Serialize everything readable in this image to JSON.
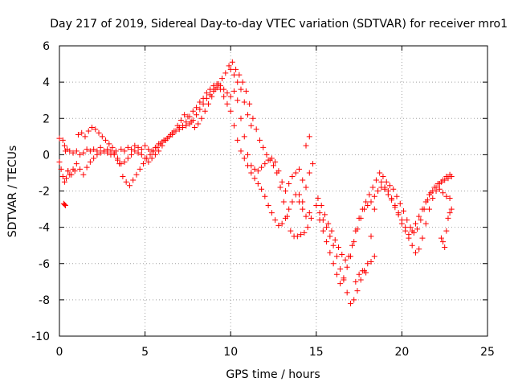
{
  "chart_data": {
    "type": "scatter",
    "title": "Day 217 of 2019, Sidereal Day-to-day VTEC variation (SDTVAR) for receiver mro1",
    "xlabel": "GPS time / hours",
    "ylabel": "SDTVAR / TECUs",
    "xlim": [
      0,
      25
    ],
    "ylim": [
      -10,
      6
    ],
    "x_ticks": [
      0,
      5,
      10,
      15,
      20,
      25
    ],
    "y_ticks": [
      -10,
      -8,
      -6,
      -4,
      -2,
      0,
      2,
      4,
      6
    ],
    "x_tick_labels": [
      "0",
      "5",
      "10",
      "15",
      "20",
      "25"
    ],
    "y_tick_labels": [
      "-10",
      "-8",
      "-6",
      "-4",
      "-2",
      "0",
      "2",
      "4",
      "6"
    ],
    "grid": true,
    "legend": "none",
    "marker": "plus",
    "color": "#ff0000",
    "series": [
      {
        "x": [
          0.0,
          0.2,
          0.3,
          0.35,
          0.45,
          0.6,
          0.8,
          1.0,
          1.2,
          1.4,
          1.6,
          1.8,
          2.0,
          2.2,
          2.4,
          2.6,
          2.8,
          3.0,
          3.2,
          3.4,
          3.6,
          3.8,
          4.0,
          4.2,
          4.4,
          4.6,
          4.8,
          5.0,
          5.2,
          5.4,
          5.6,
          5.8,
          6.0,
          6.2,
          6.4,
          6.6,
          6.8,
          7.0,
          7.2,
          7.4,
          7.6,
          7.8,
          8.0,
          8.2,
          8.4,
          8.6,
          8.8,
          9.0,
          9.2,
          9.4,
          9.6,
          9.8,
          10.0,
          10.2,
          10.4,
          10.6,
          10.8,
          11.0,
          11.2,
          11.4,
          11.6,
          11.8,
          12.0,
          12.2,
          12.4,
          12.6,
          12.8,
          13.0,
          13.2,
          13.4,
          13.6,
          13.8,
          14.0,
          14.2,
          14.4,
          14.6,
          14.8
        ],
        "y": [
          0.9,
          0.8,
          0.5,
          0.2,
          0.3,
          0.2,
          0.1,
          0.2,
          0.0,
          0.1,
          0.3,
          0.2,
          0.3,
          0.2,
          0.4,
          0.2,
          0.1,
          0.0,
          0.1,
          -0.2,
          0.3,
          0.2,
          0.4,
          0.3,
          0.5,
          0.4,
          0.3,
          0.5,
          0.3,
          0.2,
          0.4,
          0.6,
          0.7,
          0.8,
          1.0,
          1.2,
          1.3,
          1.5,
          1.6,
          1.8,
          2.1,
          2.4,
          2.6,
          2.9,
          3.1,
          3.4,
          3.6,
          3.8,
          3.9,
          3.8,
          3.6,
          3.4,
          3.2,
          3.5,
          3.0,
          2.0,
          1.0,
          0.0,
          -0.6,
          -0.8,
          -0.9,
          -0.7,
          -0.5,
          -0.3,
          -0.2,
          -0.4,
          -0.9,
          -1.5,
          -2.0,
          -1.6,
          -1.2,
          -1.0,
          -0.8,
          -1.4,
          -1.8,
          -1.0,
          -0.5
        ]
      },
      {
        "x": [
          0.0,
          0.1,
          0.2,
          0.3,
          0.4,
          0.5,
          0.6,
          0.8,
          1.0,
          1.2,
          1.4,
          1.6,
          1.8,
          2.0,
          2.2,
          2.4,
          2.6,
          2.8,
          3.0,
          3.2,
          3.4,
          3.6,
          3.8,
          4.0,
          4.2,
          4.4,
          4.6,
          4.8,
          5.0,
          5.2,
          5.4,
          5.6,
          5.8,
          6.0,
          6.2,
          6.4,
          6.6,
          6.8,
          7.0,
          7.2,
          7.4,
          7.6,
          7.8,
          8.0,
          8.2,
          8.4,
          8.6,
          8.8,
          9.0,
          9.2,
          9.4,
          9.6,
          9.8,
          10.0,
          10.2,
          10.4,
          10.6,
          10.8,
          11.0,
          11.2,
          11.4,
          11.6,
          11.8,
          12.0,
          12.2,
          12.4,
          12.6,
          12.8,
          13.0,
          13.2,
          13.4,
          13.6,
          13.8,
          14.0,
          14.2,
          14.4,
          14.6
        ],
        "y": [
          -0.4,
          -0.8,
          -1.2,
          -1.5,
          -1.3,
          -0.9,
          -1.1,
          -0.8,
          -0.5,
          -0.8,
          -1.1,
          -0.7,
          -0.4,
          -0.2,
          0.0,
          0.1,
          0.2,
          0.3,
          0.2,
          0.0,
          -0.3,
          -0.5,
          -0.4,
          -0.2,
          0.0,
          0.2,
          0.1,
          0.0,
          -0.2,
          -0.4,
          -0.2,
          0.0,
          0.2,
          0.5,
          0.8,
          1.0,
          1.1,
          1.3,
          1.4,
          1.5,
          1.6,
          1.7,
          1.9,
          2.2,
          2.5,
          2.8,
          3.1,
          3.3,
          3.5,
          3.7,
          3.6,
          3.2,
          2.8,
          2.4,
          1.6,
          0.8,
          0.2,
          -0.2,
          -0.6,
          -1.0,
          -1.3,
          -1.6,
          -1.9,
          -2.3,
          -2.8,
          -3.2,
          -3.6,
          -3.9,
          -3.8,
          -3.5,
          -3.0,
          -2.6,
          -2.2,
          -2.6,
          -3.0,
          -3.4,
          -3.2
        ]
      },
      {
        "x": [
          0.5,
          0.7,
          0.9,
          1.1,
          1.3,
          1.5,
          1.7,
          1.9,
          2.1,
          2.3,
          2.5,
          2.7,
          2.9,
          3.1,
          3.3,
          3.5,
          3.7,
          3.9,
          4.1,
          4.3,
          4.5,
          4.7,
          4.9,
          5.1,
          5.3,
          5.5,
          5.7,
          5.9,
          6.1,
          6.3,
          6.5,
          6.7,
          6.9,
          7.1,
          7.3,
          7.5,
          7.7,
          7.9,
          8.1,
          8.3,
          8.5,
          8.7,
          8.9,
          9.1,
          9.3,
          9.5,
          9.7,
          9.9,
          10.1,
          10.3,
          10.5,
          10.7,
          10.9,
          11.1,
          11.3,
          11.5,
          11.7,
          11.9,
          12.1,
          12.3,
          12.5,
          12.7,
          12.9,
          13.1,
          13.3,
          13.5,
          13.7,
          13.9,
          14.1,
          14.3,
          14.5,
          14.7
        ],
        "y": [
          -0.9,
          -1.1,
          -0.9,
          1.1,
          1.2,
          1.0,
          1.3,
          1.5,
          1.4,
          1.2,
          1.0,
          0.8,
          0.6,
          0.4,
          0.2,
          -0.5,
          -1.2,
          -1.5,
          -1.7,
          -1.4,
          -1.1,
          -0.8,
          -0.5,
          -0.2,
          0.0,
          0.2,
          0.4,
          0.6,
          0.8,
          0.9,
          1.1,
          1.3,
          1.6,
          1.9,
          2.2,
          2.1,
          1.8,
          1.5,
          1.7,
          2.0,
          2.4,
          2.8,
          3.2,
          3.6,
          3.9,
          4.2,
          4.5,
          4.9,
          5.1,
          4.7,
          4.4,
          4.0,
          3.5,
          2.8,
          2.0,
          1.4,
          0.8,
          0.4,
          0.0,
          -0.3,
          -0.6,
          -1.0,
          -1.8,
          -2.6,
          -3.4,
          -4.2,
          -4.5,
          -4.5,
          -4.4,
          -4.3,
          -4.0,
          -3.5
        ]
      },
      {
        "x": [
          15.0,
          15.2,
          15.4,
          15.6,
          15.8,
          16.0,
          16.2,
          16.4,
          16.6,
          16.8,
          17.0,
          17.2,
          17.4,
          17.6,
          17.8,
          18.0,
          18.2,
          18.4,
          18.6,
          18.8,
          19.0,
          19.2,
          19.4,
          19.6,
          19.8,
          20.0,
          20.2,
          20.4,
          20.6,
          20.8,
          21.0,
          21.2,
          21.4,
          21.6,
          21.8,
          22.0,
          22.2,
          22.4,
          22.6,
          22.8
        ],
        "y": [
          -2.8,
          -3.2,
          -3.6,
          -4.0,
          -4.5,
          -5.0,
          -5.6,
          -6.3,
          -6.9,
          -7.6,
          -8.2,
          -8.0,
          -7.5,
          -6.9,
          -6.4,
          -6.0,
          -4.5,
          -3.0,
          -2.0,
          -1.5,
          -1.8,
          -2.0,
          -2.4,
          -2.8,
          -3.2,
          -3.6,
          -4.0,
          -4.4,
          -4.2,
          -3.8,
          -3.4,
          -3.0,
          -2.6,
          -2.2,
          -2.0,
          -1.8,
          -1.6,
          -1.4,
          -1.2,
          -1.1
        ]
      },
      {
        "x": [
          15.1,
          15.3,
          15.5,
          15.7,
          15.9,
          16.1,
          16.3,
          16.5,
          16.7,
          16.9,
          17.1,
          17.3,
          17.5,
          17.7,
          17.9,
          18.1,
          18.3,
          18.5,
          18.7,
          18.9,
          19.1,
          19.3,
          19.5,
          19.7,
          19.9,
          20.1,
          20.3,
          20.5,
          20.7,
          20.9,
          21.1,
          21.3,
          21.5,
          21.7,
          21.9,
          22.1,
          22.3,
          22.5,
          22.7,
          22.9
        ],
        "y": [
          -2.4,
          -2.8,
          -3.3,
          -3.8,
          -4.2,
          -4.7,
          -5.1,
          -5.5,
          -5.8,
          -5.6,
          -5.0,
          -4.2,
          -3.5,
          -3.0,
          -2.6,
          -2.2,
          -1.8,
          -1.4,
          -1.0,
          -1.2,
          -1.5,
          -1.7,
          -1.9,
          -2.3,
          -2.7,
          -3.1,
          -3.6,
          -4.0,
          -4.3,
          -4.1,
          -3.6,
          -3.0,
          -2.5,
          -2.1,
          -1.8,
          -1.6,
          -1.5,
          -1.4,
          -1.3,
          -1.2
        ]
      },
      {
        "x": [
          15.2,
          15.4,
          15.6,
          15.8,
          16.0,
          16.2,
          16.4,
          16.6,
          16.8,
          17.0,
          17.2,
          17.4,
          17.6,
          17.8,
          18.0,
          18.2,
          18.4,
          18.6,
          18.8,
          19.0,
          19.2,
          19.4,
          19.6,
          19.8,
          20.0,
          20.2,
          20.4,
          20.6,
          20.8,
          21.0,
          21.2,
          21.4,
          21.6,
          21.8,
          22.0,
          22.2,
          22.4,
          22.6,
          22.8
        ],
        "y": [
          -3.6,
          -4.2,
          -4.8,
          -5.4,
          -6.0,
          -6.6,
          -7.1,
          -6.8,
          -6.2,
          -5.6,
          -4.8,
          -4.1,
          -3.5,
          -3.0,
          -2.8,
          -2.6,
          -2.3,
          -2.0,
          -1.8,
          -1.9,
          -2.2,
          -2.5,
          -2.9,
          -3.3,
          -3.8,
          -4.2,
          -4.6,
          -5.0,
          -5.4,
          -5.2,
          -4.6,
          -3.8,
          -3.0,
          -2.4,
          -2.0,
          -1.9,
          -2.1,
          -2.3,
          -2.4
        ]
      },
      {
        "x": [
          0.25,
          0.3,
          0.35,
          10.0,
          10.2,
          10.4,
          10.6,
          10.8,
          11.0,
          11.2,
          14.0,
          14.2,
          14.4,
          14.6,
          17.3,
          17.5,
          17.7,
          17.9,
          18.2,
          18.4,
          22.3,
          22.4,
          22.5,
          22.6,
          22.7,
          22.8,
          22.9
        ],
        "y": [
          -2.7,
          -2.75,
          -2.8,
          4.7,
          4.4,
          4.0,
          3.6,
          2.9,
          2.2,
          1.6,
          -2.2,
          -2.6,
          0.5,
          1.0,
          -7.0,
          -6.6,
          -6.4,
          -6.5,
          -5.9,
          -5.6,
          -4.6,
          -4.8,
          -5.1,
          -4.2,
          -3.5,
          -3.2,
          -3.0
        ]
      }
    ]
  }
}
